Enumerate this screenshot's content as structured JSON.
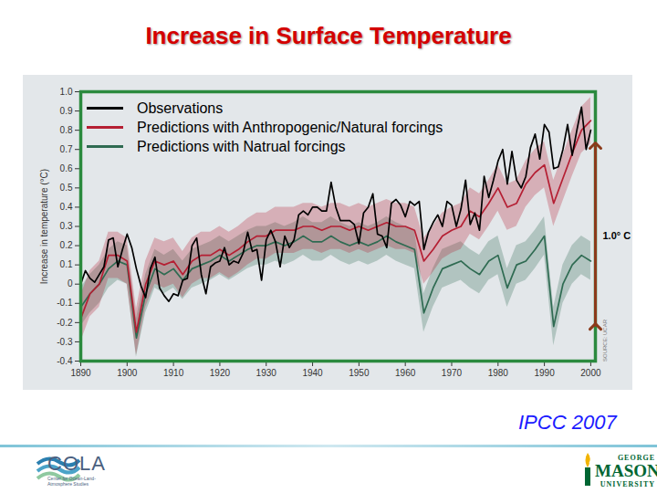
{
  "chart_data": {
    "type": "line",
    "title": "Increase in Surface Temperature",
    "y_label": "Increase in temperature (°C)",
    "xlim": [
      1890,
      2001
    ],
    "ylim": [
      -0.4,
      1.0
    ],
    "xticks": [
      1890,
      1900,
      1910,
      1920,
      1930,
      1940,
      1950,
      1960,
      1970,
      1980,
      1990,
      2000
    ],
    "yticks": [
      -0.4,
      -0.3,
      -0.2,
      -0.1,
      0,
      0.1,
      0.2,
      0.3,
      0.4,
      0.5,
      0.6,
      0.7,
      0.8,
      0.9,
      {
        "value": 1,
        "label": "1.0"
      }
    ],
    "legend": "top-left",
    "grid": false,
    "source": "SOURCE: UCAR",
    "annotation": {
      "text": "1.0° C",
      "x": 2001,
      "y1": -0.22,
      "y2": 0.72
    },
    "series": [
      {
        "name": "Observations",
        "color": "#000000",
        "x": [
          1890,
          1891,
          1892,
          1893,
          1894,
          1895,
          1896,
          1897,
          1898,
          1899,
          1900,
          1901,
          1902,
          1903,
          1904,
          1905,
          1906,
          1907,
          1908,
          1909,
          1910,
          1911,
          1912,
          1913,
          1914,
          1915,
          1916,
          1917,
          1918,
          1919,
          1920,
          1921,
          1922,
          1923,
          1924,
          1925,
          1926,
          1927,
          1928,
          1929,
          1930,
          1931,
          1932,
          1933,
          1934,
          1935,
          1936,
          1937,
          1938,
          1939,
          1940,
          1941,
          1942,
          1943,
          1944,
          1945,
          1946,
          1947,
          1948,
          1949,
          1950,
          1951,
          1952,
          1953,
          1954,
          1955,
          1956,
          1957,
          1958,
          1959,
          1960,
          1961,
          1962,
          1963,
          1964,
          1965,
          1966,
          1967,
          1968,
          1969,
          1970,
          1971,
          1972,
          1973,
          1974,
          1975,
          1976,
          1977,
          1978,
          1979,
          1980,
          1981,
          1982,
          1983,
          1984,
          1985,
          1986,
          1987,
          1988,
          1989,
          1990,
          1991,
          1992,
          1993,
          1994,
          1995,
          1996,
          1997,
          1998,
          1999,
          2000
        ],
        "values": [
          0.0,
          0.07,
          0.03,
          0.01,
          0.05,
          0.09,
          0.23,
          0.24,
          0.09,
          0.18,
          0.26,
          0.19,
          0.08,
          -0.01,
          -0.07,
          0.08,
          0.14,
          -0.02,
          -0.06,
          -0.09,
          -0.05,
          -0.06,
          0.02,
          0.03,
          0.2,
          0.24,
          0.05,
          -0.05,
          0.09,
          0.11,
          0.12,
          0.19,
          0.1,
          0.12,
          0.11,
          0.16,
          0.27,
          0.17,
          0.18,
          0.02,
          0.23,
          0.28,
          0.22,
          0.09,
          0.25,
          0.19,
          0.23,
          0.36,
          0.38,
          0.36,
          0.4,
          0.4,
          0.38,
          0.38,
          0.53,
          0.4,
          0.33,
          0.33,
          0.33,
          0.31,
          0.21,
          0.37,
          0.4,
          0.47,
          0.26,
          0.25,
          0.19,
          0.42,
          0.44,
          0.41,
          0.35,
          0.43,
          0.41,
          0.43,
          0.18,
          0.27,
          0.32,
          0.36,
          0.3,
          0.43,
          0.41,
          0.3,
          0.39,
          0.54,
          0.31,
          0.37,
          0.28,
          0.56,
          0.45,
          0.54,
          0.64,
          0.7,
          0.52,
          0.69,
          0.54,
          0.5,
          0.56,
          0.71,
          0.78,
          0.65,
          0.83,
          0.79,
          0.6,
          0.61,
          0.7,
          0.83,
          0.67,
          0.8,
          0.92,
          0.7,
          0.8
        ]
      },
      {
        "name": "Predictions with Anthropogenic/Natural forcings",
        "color": "#b51f33",
        "x": [
          1890,
          1892,
          1894,
          1896,
          1898,
          1900,
          1902,
          1904,
          1906,
          1908,
          1910,
          1912,
          1914,
          1916,
          1918,
          1920,
          1922,
          1924,
          1926,
          1928,
          1930,
          1932,
          1934,
          1936,
          1938,
          1940,
          1942,
          1944,
          1946,
          1948,
          1950,
          1952,
          1954,
          1956,
          1958,
          1960,
          1962,
          1964,
          1966,
          1968,
          1970,
          1972,
          1974,
          1976,
          1978,
          1980,
          1982,
          1984,
          1986,
          1988,
          1990,
          1992,
          1994,
          1996,
          1998,
          2000
        ],
        "values": [
          -0.18,
          -0.05,
          0.0,
          0.15,
          0.15,
          0.12,
          -0.25,
          0.0,
          0.12,
          0.1,
          0.12,
          0.05,
          0.12,
          0.15,
          0.15,
          0.18,
          0.15,
          0.18,
          0.22,
          0.25,
          0.25,
          0.28,
          0.28,
          0.28,
          0.3,
          0.3,
          0.28,
          0.3,
          0.3,
          0.28,
          0.3,
          0.28,
          0.3,
          0.32,
          0.3,
          0.3,
          0.28,
          0.12,
          0.18,
          0.25,
          0.28,
          0.3,
          0.38,
          0.35,
          0.42,
          0.5,
          0.4,
          0.42,
          0.52,
          0.58,
          0.62,
          0.42,
          0.55,
          0.68,
          0.8,
          0.85
        ],
        "lower": [
          -0.3,
          -0.17,
          -0.12,
          0.03,
          0.03,
          0.0,
          -0.37,
          -0.12,
          0.0,
          -0.02,
          0.0,
          -0.07,
          0.0,
          0.03,
          0.03,
          0.06,
          0.03,
          0.06,
          0.1,
          0.13,
          0.13,
          0.16,
          0.16,
          0.16,
          0.18,
          0.18,
          0.16,
          0.18,
          0.18,
          0.16,
          0.18,
          0.16,
          0.18,
          0.2,
          0.18,
          0.18,
          0.16,
          0.0,
          0.06,
          0.13,
          0.16,
          0.18,
          0.26,
          0.23,
          0.3,
          0.38,
          0.28,
          0.3,
          0.4,
          0.46,
          0.5,
          0.3,
          0.43,
          0.56,
          0.68,
          0.73
        ],
        "upper": [
          -0.06,
          0.07,
          0.12,
          0.27,
          0.27,
          0.24,
          -0.13,
          0.12,
          0.24,
          0.22,
          0.24,
          0.17,
          0.24,
          0.27,
          0.27,
          0.3,
          0.27,
          0.3,
          0.34,
          0.37,
          0.37,
          0.4,
          0.4,
          0.4,
          0.42,
          0.42,
          0.4,
          0.42,
          0.42,
          0.4,
          0.42,
          0.4,
          0.42,
          0.44,
          0.42,
          0.42,
          0.4,
          0.24,
          0.3,
          0.37,
          0.4,
          0.42,
          0.5,
          0.47,
          0.54,
          0.62,
          0.52,
          0.54,
          0.64,
          0.7,
          0.74,
          0.54,
          0.67,
          0.8,
          0.92,
          0.97
        ]
      },
      {
        "name": "Predictions with Natrual forcings",
        "color": "#2f6b52",
        "x": [
          1890,
          1892,
          1894,
          1896,
          1898,
          1900,
          1902,
          1904,
          1906,
          1908,
          1910,
          1912,
          1914,
          1916,
          1918,
          1920,
          1922,
          1924,
          1926,
          1928,
          1930,
          1932,
          1934,
          1936,
          1938,
          1940,
          1942,
          1944,
          1946,
          1948,
          1950,
          1952,
          1954,
          1956,
          1958,
          1960,
          1962,
          1964,
          1966,
          1968,
          1970,
          1972,
          1974,
          1976,
          1978,
          1980,
          1982,
          1984,
          1986,
          1988,
          1990,
          1992,
          1994,
          1996,
          1998,
          2000
        ],
        "values": [
          -0.12,
          -0.05,
          0.0,
          0.08,
          0.12,
          0.1,
          -0.28,
          -0.05,
          0.08,
          0.05,
          0.08,
          0.02,
          0.08,
          0.1,
          0.12,
          0.15,
          0.12,
          0.15,
          0.18,
          0.2,
          0.2,
          0.22,
          0.2,
          0.22,
          0.25,
          0.22,
          0.22,
          0.25,
          0.22,
          0.2,
          0.22,
          0.2,
          0.22,
          0.25,
          0.22,
          0.2,
          0.18,
          -0.15,
          -0.02,
          0.08,
          0.1,
          0.12,
          0.08,
          0.05,
          0.12,
          0.15,
          -0.02,
          0.1,
          0.12,
          0.18,
          0.25,
          -0.22,
          0.0,
          0.1,
          0.15,
          0.12
        ],
        "lower": [
          -0.22,
          -0.15,
          -0.1,
          -0.02,
          0.02,
          0.0,
          -0.38,
          -0.15,
          -0.02,
          -0.05,
          -0.02,
          -0.08,
          -0.02,
          0.0,
          0.02,
          0.05,
          0.02,
          0.05,
          0.08,
          0.1,
          0.1,
          0.12,
          0.1,
          0.12,
          0.15,
          0.12,
          0.12,
          0.15,
          0.12,
          0.1,
          0.12,
          0.1,
          0.12,
          0.15,
          0.12,
          0.1,
          0.08,
          -0.25,
          -0.12,
          -0.02,
          0.0,
          0.02,
          -0.02,
          -0.05,
          0.02,
          0.05,
          -0.12,
          0.0,
          0.02,
          0.08,
          0.15,
          -0.32,
          -0.1,
          0.0,
          0.05,
          0.02
        ],
        "upper": [
          -0.02,
          0.05,
          0.1,
          0.18,
          0.22,
          0.2,
          -0.18,
          0.05,
          0.18,
          0.15,
          0.18,
          0.12,
          0.18,
          0.2,
          0.22,
          0.25,
          0.22,
          0.25,
          0.28,
          0.3,
          0.3,
          0.32,
          0.3,
          0.32,
          0.35,
          0.32,
          0.32,
          0.35,
          0.32,
          0.3,
          0.32,
          0.3,
          0.32,
          0.35,
          0.32,
          0.3,
          0.28,
          -0.05,
          0.08,
          0.18,
          0.2,
          0.22,
          0.18,
          0.15,
          0.22,
          0.25,
          0.08,
          0.2,
          0.22,
          0.28,
          0.35,
          -0.12,
          0.1,
          0.2,
          0.25,
          0.22
        ]
      }
    ]
  },
  "footer": {
    "citation": "IPCC 2007",
    "left_logo": "COLA",
    "left_logo_subtitle": "Center for Ocean-Land-Atmosphere Studies",
    "right_logo": [
      "GEORGE",
      "MASON",
      "UNIVERSITY"
    ]
  }
}
